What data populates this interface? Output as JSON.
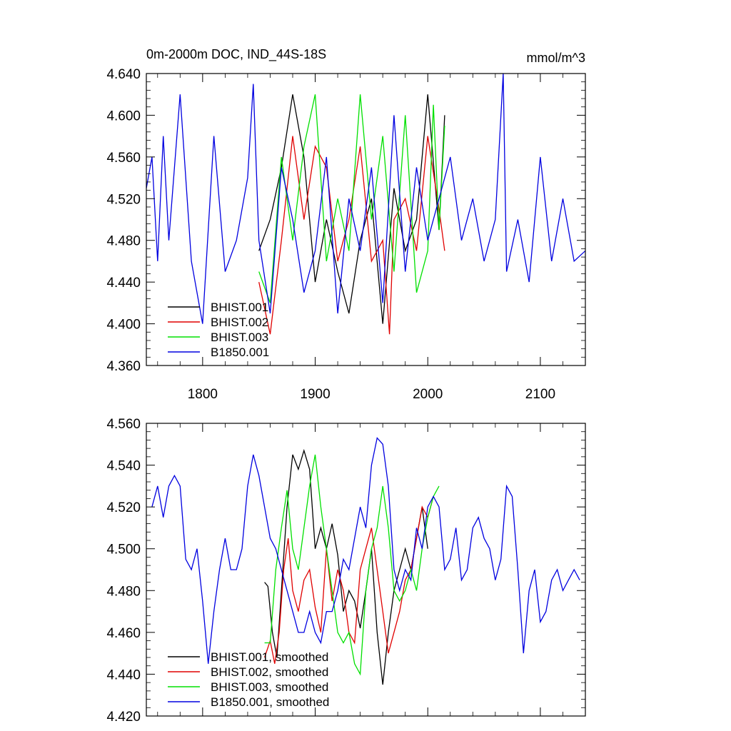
{
  "figure": {
    "title": "0m-2000m DOC, IND_44S-18S",
    "units": "mmol/m^3"
  },
  "colors": {
    "BHIST.001": "#000000",
    "BHIST.002": "#e00000",
    "BHIST.003": "#00e000",
    "B1850.001": "#0000e0"
  },
  "chart_data": [
    {
      "type": "line",
      "title": "0m-2000m DOC, IND_44S-18S",
      "units": "mmol/m^3",
      "xlim": [
        1750,
        2140
      ],
      "ylim": [
        4.36,
        4.64
      ],
      "x_ticks": [
        1800,
        1900,
        2000,
        2100
      ],
      "x_tick_labels": [
        "1800",
        "1900",
        "2000",
        "2100"
      ],
      "y_ticks": [
        4.36,
        4.4,
        4.44,
        4.48,
        4.52,
        4.56,
        4.6,
        4.64
      ],
      "y_tick_labels": [
        "4.360",
        "4.400",
        "4.440",
        "4.480",
        "4.520",
        "4.560",
        "4.600",
        "4.640"
      ],
      "legend": [
        "BHIST.001",
        "BHIST.002",
        "BHIST.003",
        "B1850.001"
      ],
      "legend_position": "bottom-left",
      "series": [
        {
          "name": "BHIST.001",
          "x": [
            1850,
            1860,
            1870,
            1880,
            1890,
            1900,
            1910,
            1920,
            1930,
            1940,
            1950,
            1960,
            1970,
            1980,
            1990,
            2000,
            2010,
            2015
          ],
          "y": [
            4.47,
            4.5,
            4.55,
            4.62,
            4.56,
            4.44,
            4.5,
            4.45,
            4.41,
            4.48,
            4.52,
            4.4,
            4.53,
            4.47,
            4.5,
            4.62,
            4.49,
            4.6
          ]
        },
        {
          "name": "BHIST.002",
          "x": [
            1850,
            1860,
            1870,
            1880,
            1890,
            1900,
            1910,
            1920,
            1930,
            1940,
            1950,
            1960,
            1966,
            1970,
            1980,
            1990,
            2000,
            2010,
            2015
          ],
          "y": [
            4.44,
            4.39,
            4.48,
            4.58,
            4.5,
            4.57,
            4.55,
            4.46,
            4.5,
            4.57,
            4.46,
            4.48,
            4.39,
            4.5,
            4.52,
            4.47,
            4.58,
            4.51,
            4.47
          ]
        },
        {
          "name": "BHIST.003",
          "x": [
            1850,
            1860,
            1870,
            1880,
            1890,
            1900,
            1910,
            1920,
            1930,
            1940,
            1950,
            1960,
            1970,
            1980,
            1990,
            2000,
            2005,
            2010,
            2015
          ],
          "y": [
            4.45,
            4.42,
            4.56,
            4.48,
            4.57,
            4.62,
            4.46,
            4.52,
            4.47,
            4.62,
            4.5,
            4.58,
            4.45,
            4.6,
            4.43,
            4.47,
            4.61,
            4.49,
            4.59
          ]
        },
        {
          "name": "B1850.001",
          "x": [
            1750,
            1755,
            1760,
            1765,
            1770,
            1775,
            1780,
            1790,
            1800,
            1810,
            1820,
            1830,
            1840,
            1845,
            1850,
            1860,
            1870,
            1880,
            1890,
            1900,
            1910,
            1920,
            1930,
            1940,
            1950,
            1960,
            1970,
            1980,
            1990,
            2000,
            2010,
            2020,
            2030,
            2040,
            2050,
            2060,
            2067,
            2070,
            2080,
            2090,
            2100,
            2110,
            2120,
            2130,
            2140
          ],
          "y": [
            4.53,
            4.56,
            4.46,
            4.58,
            4.48,
            4.55,
            4.62,
            4.46,
            4.4,
            4.58,
            4.45,
            4.48,
            4.54,
            4.63,
            4.48,
            4.41,
            4.55,
            4.5,
            4.43,
            4.47,
            4.56,
            4.41,
            4.52,
            4.47,
            4.55,
            4.42,
            4.6,
            4.45,
            4.55,
            4.48,
            4.52,
            4.56,
            4.48,
            4.52,
            4.46,
            4.5,
            4.64,
            4.45,
            4.5,
            4.44,
            4.56,
            4.46,
            4.52,
            4.46,
            4.47
          ]
        }
      ]
    },
    {
      "type": "line",
      "title": "",
      "xlim": [
        1750,
        2140
      ],
      "ylim": [
        4.42,
        4.56
      ],
      "x_ticks": [
        1800,
        1900,
        2000,
        2100
      ],
      "x_tick_labels": [],
      "y_ticks": [
        4.42,
        4.44,
        4.46,
        4.48,
        4.5,
        4.52,
        4.54,
        4.56
      ],
      "y_tick_labels": [
        "4.420",
        "4.440",
        "4.460",
        "4.480",
        "4.500",
        "4.520",
        "4.540",
        "4.560"
      ],
      "legend": [
        "BHIST.001, smoothed",
        "BHIST.002, smoothed",
        "BHIST.003, smoothed",
        "B1850.001, smoothed"
      ],
      "legend_position": "bottom-left",
      "series": [
        {
          "name": "BHIST.001, smoothed",
          "x": [
            1855,
            1858,
            1862,
            1866,
            1870,
            1875,
            1880,
            1885,
            1890,
            1895,
            1900,
            1905,
            1910,
            1915,
            1920,
            1925,
            1930,
            1935,
            1940,
            1945,
            1950,
            1955,
            1960,
            1965,
            1970,
            1975,
            1980,
            1985,
            1990,
            1995,
            2000
          ],
          "y": [
            4.484,
            4.482,
            4.46,
            4.448,
            4.48,
            4.52,
            4.545,
            4.538,
            4.547,
            4.538,
            4.5,
            4.51,
            4.5,
            4.512,
            4.497,
            4.47,
            4.48,
            4.475,
            4.462,
            4.48,
            4.5,
            4.46,
            4.435,
            4.46,
            4.48,
            4.49,
            4.5,
            4.49,
            4.505,
            4.52,
            4.5
          ]
        },
        {
          "name": "BHIST.002, smoothed",
          "x": [
            1855,
            1860,
            1864,
            1868,
            1872,
            1876,
            1880,
            1885,
            1890,
            1895,
            1900,
            1905,
            1910,
            1915,
            1920,
            1925,
            1930,
            1935,
            1940,
            1945,
            1950,
            1955,
            1960,
            1965,
            1970,
            1975,
            1980,
            1985,
            1990,
            1995,
            2000,
            2005
          ],
          "y": [
            4.448,
            4.456,
            4.445,
            4.46,
            4.49,
            4.505,
            4.48,
            4.47,
            4.485,
            4.49,
            4.472,
            4.46,
            4.5,
            4.475,
            4.49,
            4.48,
            4.46,
            4.455,
            4.49,
            4.5,
            4.51,
            4.49,
            4.47,
            4.45,
            4.46,
            4.47,
            4.485,
            4.49,
            4.505,
            4.52,
            4.515,
            4.525
          ]
        },
        {
          "name": "BHIST.003, smoothed",
          "x": [
            1855,
            1860,
            1865,
            1870,
            1875,
            1880,
            1885,
            1890,
            1895,
            1900,
            1905,
            1910,
            1915,
            1920,
            1925,
            1930,
            1935,
            1940,
            1945,
            1950,
            1955,
            1960,
            1965,
            1970,
            1975,
            1980,
            1985,
            1990,
            1995,
            2000,
            2005,
            2010
          ],
          "y": [
            4.455,
            4.455,
            4.49,
            4.51,
            4.528,
            4.5,
            4.49,
            4.51,
            4.53,
            4.545,
            4.52,
            4.5,
            4.48,
            4.46,
            4.455,
            4.46,
            4.445,
            4.44,
            4.48,
            4.5,
            4.51,
            4.53,
            4.51,
            4.48,
            4.475,
            4.48,
            4.49,
            4.48,
            4.5,
            4.515,
            4.525,
            4.53
          ]
        },
        {
          "name": "B1850.001, smoothed",
          "x": [
            1755,
            1760,
            1765,
            1770,
            1775,
            1780,
            1785,
            1790,
            1795,
            1800,
            1805,
            1810,
            1815,
            1820,
            1825,
            1830,
            1835,
            1840,
            1845,
            1850,
            1855,
            1860,
            1865,
            1870,
            1875,
            1880,
            1885,
            1890,
            1895,
            1900,
            1905,
            1910,
            1915,
            1920,
            1925,
            1930,
            1935,
            1940,
            1945,
            1950,
            1955,
            1960,
            1965,
            1970,
            1975,
            1980,
            1985,
            1990,
            1995,
            2000,
            2005,
            2010,
            2015,
            2020,
            2025,
            2030,
            2035,
            2040,
            2045,
            2050,
            2055,
            2060,
            2065,
            2070,
            2075,
            2080,
            2085,
            2090,
            2095,
            2100,
            2105,
            2110,
            2115,
            2120,
            2125,
            2130,
            2135
          ],
          "y": [
            4.52,
            4.53,
            4.515,
            4.53,
            4.535,
            4.53,
            4.495,
            4.49,
            4.5,
            4.475,
            4.445,
            4.47,
            4.49,
            4.505,
            4.49,
            4.49,
            4.5,
            4.53,
            4.545,
            4.535,
            4.52,
            4.505,
            4.5,
            4.49,
            4.48,
            4.47,
            4.46,
            4.46,
            4.47,
            4.46,
            4.455,
            4.47,
            4.47,
            4.48,
            4.495,
            4.49,
            4.505,
            4.52,
            4.51,
            4.54,
            4.553,
            4.55,
            4.53,
            4.49,
            4.48,
            4.49,
            4.485,
            4.51,
            4.5,
            4.52,
            4.525,
            4.52,
            4.49,
            4.495,
            4.51,
            4.485,
            4.49,
            4.51,
            4.515,
            4.505,
            4.5,
            4.485,
            4.495,
            4.53,
            4.525,
            4.49,
            4.45,
            4.48,
            4.49,
            4.465,
            4.47,
            4.485,
            4.49,
            4.48,
            4.485,
            4.49,
            4.485
          ]
        }
      ]
    }
  ]
}
